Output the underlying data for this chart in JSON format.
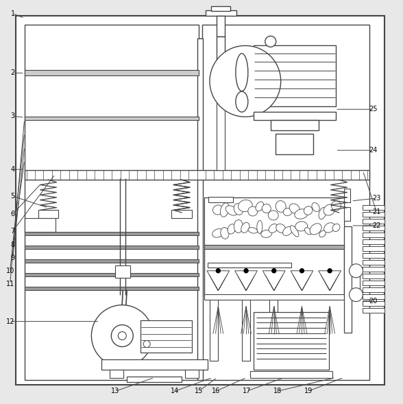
{
  "bg_color": "#e8e8e8",
  "line_color": "#444444",
  "lw": 1.0,
  "fig_width": 5.88,
  "fig_height": 5.89
}
